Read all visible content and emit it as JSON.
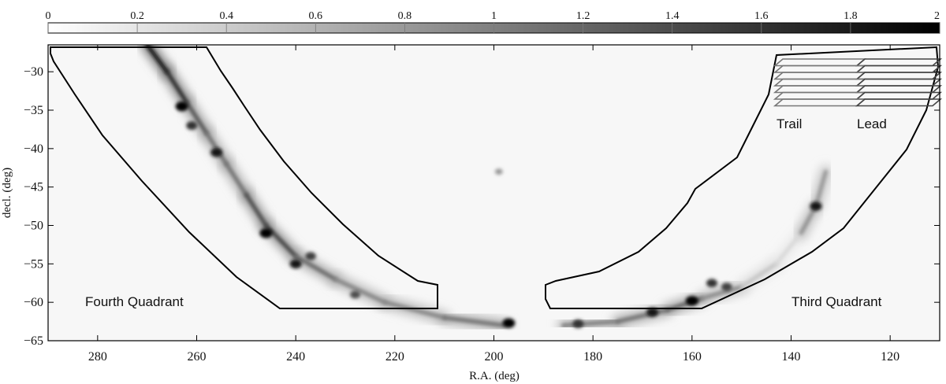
{
  "chart_data": {
    "type": "heatmap",
    "xlabel": "R.A. (deg)",
    "ylabel": "decl. (deg)",
    "xlim": [
      290,
      110
    ],
    "ylim": [
      -65,
      -26.5
    ],
    "x_ticks": [
      280,
      260,
      240,
      220,
      200,
      180,
      160,
      140,
      120
    ],
    "y_ticks": [
      -30,
      -35,
      -40,
      -45,
      -50,
      -55,
      -60,
      -65
    ],
    "colorbar": {
      "range": [
        0,
        2
      ],
      "ticks": [
        "0",
        "0.2",
        "0.4",
        "0.6",
        "0.8",
        "1",
        "1.2",
        "1.4",
        "1.6",
        "1.8",
        "2"
      ],
      "colormap": "white-to-black",
      "position": "top"
    },
    "emission_ridge": [
      {
        "x": 270,
        "y": -26.5,
        "v": 1.8
      },
      {
        "x": 266,
        "y": -30,
        "v": 1.9
      },
      {
        "x": 262,
        "y": -34,
        "v": 1.4
      },
      {
        "x": 258,
        "y": -38,
        "v": 1.2
      },
      {
        "x": 254,
        "y": -42,
        "v": 1.0
      },
      {
        "x": 250,
        "y": -46,
        "v": 1.2
      },
      {
        "x": 246,
        "y": -50,
        "v": 1.6
      },
      {
        "x": 240,
        "y": -54,
        "v": 1.3
      },
      {
        "x": 232,
        "y": -57,
        "v": 1.0
      },
      {
        "x": 222,
        "y": -60,
        "v": 0.9
      },
      {
        "x": 210,
        "y": -62,
        "v": 1.0
      },
      {
        "x": 198,
        "y": -63,
        "v": 1.2
      },
      {
        "x": 186,
        "y": -63,
        "v": 1.0
      },
      {
        "x": 175,
        "y": -62.5,
        "v": 1.0
      },
      {
        "x": 165,
        "y": -61,
        "v": 1.2
      },
      {
        "x": 158,
        "y": -59.5,
        "v": 1.2
      },
      {
        "x": 150,
        "y": -58,
        "v": 0.6
      },
      {
        "x": 143,
        "y": -55,
        "v": 0.3
      },
      {
        "x": 138,
        "y": -51,
        "v": 0.3
      },
      {
        "x": 135,
        "y": -47.5,
        "v": 1.4
      },
      {
        "x": 133,
        "y": -43,
        "v": 0.2
      }
    ],
    "compact_sources": [
      {
        "x": 263,
        "y": -34.5,
        "v": 2.0
      },
      {
        "x": 261,
        "y": -37,
        "v": 1.6
      },
      {
        "x": 256,
        "y": -40.5,
        "v": 1.8
      },
      {
        "x": 246,
        "y": -51,
        "v": 2.0
      },
      {
        "x": 240,
        "y": -55,
        "v": 1.8
      },
      {
        "x": 237,
        "y": -54,
        "v": 1.5
      },
      {
        "x": 228,
        "y": -59,
        "v": 1.4
      },
      {
        "x": 197,
        "y": -62.7,
        "v": 2.0
      },
      {
        "x": 183,
        "y": -62.8,
        "v": 1.6
      },
      {
        "x": 168,
        "y": -61.3,
        "v": 1.8
      },
      {
        "x": 160,
        "y": -59.8,
        "v": 2.0
      },
      {
        "x": 156,
        "y": -57.5,
        "v": 1.6
      },
      {
        "x": 153,
        "y": -58,
        "v": 1.5
      },
      {
        "x": 135,
        "y": -47.5,
        "v": 1.8
      },
      {
        "x": 199,
        "y": -43,
        "v": 0.8
      }
    ],
    "regions": [
      {
        "name": "Fourth Quadrant",
        "label_at": {
          "x": 270,
          "y": -60
        }
      },
      {
        "name": "Third Quadrant",
        "label_at": {
          "x": 130,
          "y": -60
        }
      }
    ],
    "inset": {
      "left_label": "Trail",
      "right_label": "Lead",
      "strips_per_half": 7
    }
  }
}
